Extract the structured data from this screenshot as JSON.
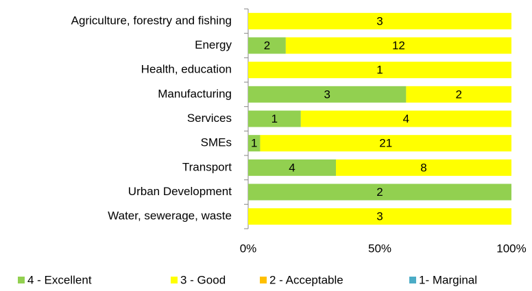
{
  "chart_data": {
    "type": "bar",
    "orientation": "horizontal",
    "stacked": "percent",
    "categories": [
      "Agriculture, forestry and fishing",
      "Energy",
      "Health, education",
      "Manufacturing",
      "Services",
      "SMEs",
      "Transport",
      "Urban Development",
      "Water, sewerage, waste"
    ],
    "series": [
      {
        "name": "4 - Excellent",
        "color": "#92d050",
        "values": [
          0,
          2,
          0,
          3,
          1,
          1,
          4,
          2,
          0
        ]
      },
      {
        "name": "3 - Good",
        "color": "#ffff00",
        "values": [
          3,
          12,
          1,
          2,
          4,
          21,
          8,
          0,
          3
        ]
      },
      {
        "name": "2 - Acceptable",
        "color": "#ffc000",
        "values": [
          0,
          0,
          0,
          0,
          0,
          0,
          0,
          0,
          0
        ]
      },
      {
        "name": "1- Marginal",
        "color": "#4bacc6",
        "values": [
          0,
          0,
          0,
          0,
          0,
          0,
          0,
          0,
          0
        ]
      }
    ],
    "xlim": [
      0,
      100
    ],
    "xticks": [
      {
        "value": 0,
        "label": "0%"
      },
      {
        "value": 50,
        "label": "50%"
      },
      {
        "value": 100,
        "label": "100%"
      }
    ],
    "grid": false,
    "legend": "bottom"
  }
}
